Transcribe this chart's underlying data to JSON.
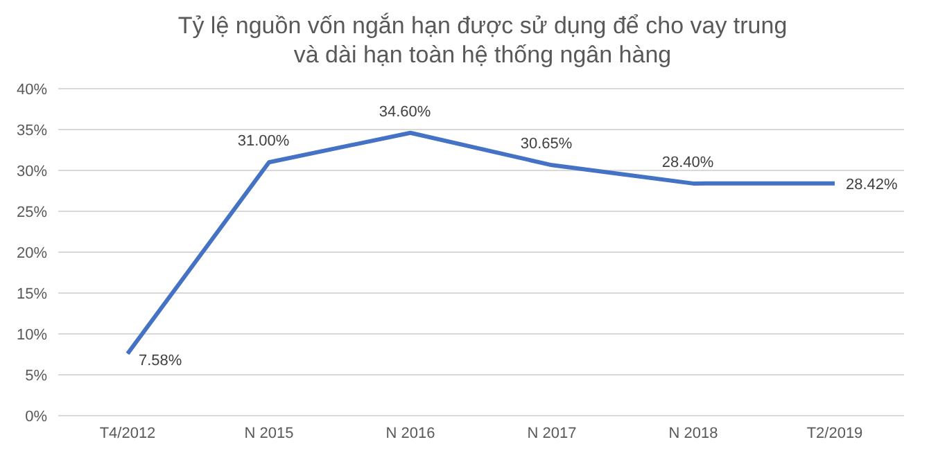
{
  "chart_data": {
    "type": "line",
    "title": "Tỷ lệ nguồn vốn ngắn hạn được sử dụng để cho vay trung và dài hạn toàn hệ thống ngân hàng",
    "categories": [
      "T4/2012",
      "N 2015",
      "N 2016",
      "N 2017",
      "N 2018",
      "T2/2019"
    ],
    "series": [
      {
        "color": "#4472c4",
        "values": [
          7.58,
          31.0,
          34.6,
          30.65,
          28.4,
          28.42
        ],
        "value_labels": [
          "7.58%",
          "31.00%",
          "34.60%",
          "30.65%",
          "28.40%",
          "28.42%"
        ]
      }
    ],
    "ylim": [
      0,
      40
    ],
    "yticks": [
      {
        "value": 0,
        "label": "0%"
      },
      {
        "value": 5,
        "label": "5%"
      },
      {
        "value": 10,
        "label": "10%"
      },
      {
        "value": 15,
        "label": "15%"
      },
      {
        "value": 20,
        "label": "20%"
      },
      {
        "value": 25,
        "label": "25%"
      },
      {
        "value": 30,
        "label": "30%"
      },
      {
        "value": 35,
        "label": "35%"
      },
      {
        "value": 40,
        "label": "40%"
      }
    ],
    "grid": "y",
    "marker": "none",
    "line_style": "solid",
    "legend": false
  }
}
